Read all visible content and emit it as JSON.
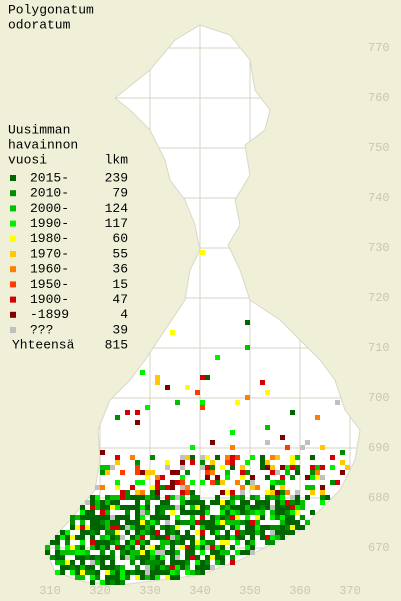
{
  "title": [
    "Polygonatum",
    "odoratum"
  ],
  "legend": {
    "heading": [
      "Uusimman",
      "havainnon",
      "vuosi"
    ],
    "count_header": "lkm",
    "entries": [
      {
        "label": "2015-",
        "count": 239,
        "color": "#006400"
      },
      {
        "label": "2010-",
        "count": 79,
        "color": "#008c00"
      },
      {
        "label": "2000-",
        "count": 124,
        "color": "#00c000"
      },
      {
        "label": "1990-",
        "count": 117,
        "color": "#00f000"
      },
      {
        "label": "1980-",
        "count": 60,
        "color": "#ffff00"
      },
      {
        "label": "1970-",
        "count": 55,
        "color": "#ffc800"
      },
      {
        "label": "1960-",
        "count": 36,
        "color": "#ff8000"
      },
      {
        "label": "1950-",
        "count": 15,
        "color": "#ff3c00"
      },
      {
        "label": "1900-",
        "count": 47,
        "color": "#d20000"
      },
      {
        "label": "-1899",
        "count": 4,
        "color": "#800000"
      },
      {
        "label": "???",
        "count": 39,
        "color": "#c0c0c0"
      }
    ],
    "total": {
      "label": "Yhteensä",
      "count": 815
    }
  },
  "map": {
    "xticks": [
      310,
      320,
      330,
      340,
      350,
      360,
      370
    ],
    "yticks": [
      770,
      760,
      750,
      740,
      730,
      720,
      710,
      700,
      690,
      680,
      670
    ]
  }
}
